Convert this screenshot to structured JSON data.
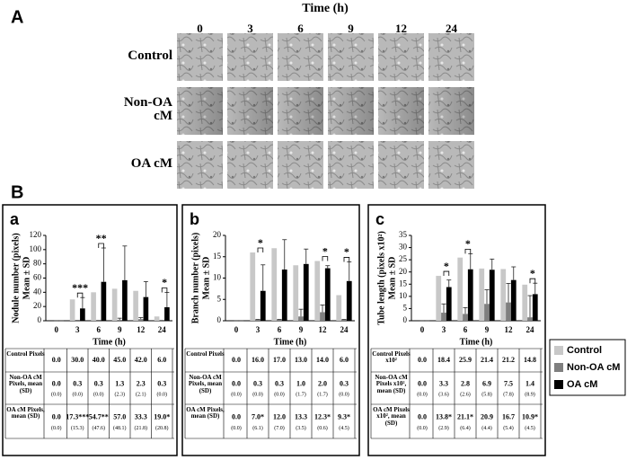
{
  "panel_a": {
    "label": "A",
    "title": "Time (h)",
    "columns": [
      "0",
      "3",
      "6",
      "9",
      "12",
      "24"
    ],
    "rows": [
      "Control",
      "Non-OA cM",
      "OA cM"
    ]
  },
  "panel_b_label": "B",
  "chart_data": [
    {
      "type": "bar",
      "panel": "a",
      "ylabel": "Nodule number (pixels)",
      "ylabel2": "Mean ± SD",
      "xlabel": "Time (h)",
      "categories": [
        "0",
        "3",
        "6",
        "9",
        "12",
        "24"
      ],
      "ylim": [
        0,
        120
      ],
      "yticks": [
        0,
        20,
        40,
        60,
        80,
        100,
        120
      ],
      "series": [
        {
          "name": "Control",
          "color": "#c8c8c8",
          "table_label": "Control Pixels",
          "values": [
            0,
            30,
            40,
            45,
            42,
            6
          ],
          "value_labels": [
            "0.0",
            "30.0",
            "40.0",
            "45.0",
            "42.0",
            "6.0"
          ]
        },
        {
          "name": "Non-OA cM",
          "color": "#7f7f7f",
          "table_label": "Non-OA cM Pixels, mean (SD)",
          "values": [
            0,
            0.3,
            0.3,
            1.3,
            2.3,
            0.3
          ],
          "value_labels": [
            "0.0",
            "0.3",
            "0.3",
            "1.3",
            "2.3",
            "0.3"
          ],
          "errors": [
            0,
            0,
            0,
            2.3,
            2.1,
            0
          ],
          "error_labels": [
            "(0.0)",
            "(0.0)",
            "(0.0)",
            "(2.3)",
            "(2.1)",
            "(0.0)"
          ]
        },
        {
          "name": "OA cM",
          "color": "#000000",
          "table_label": "OA cM Pixels, mean (SD)",
          "values": [
            0,
            17.3,
            54.7,
            57.0,
            33.3,
            19.0
          ],
          "value_labels": [
            "0.0",
            "17.3***",
            "54.7**",
            "57.0",
            "33.3",
            "19.0*"
          ],
          "errors": [
            0,
            15.3,
            47.6,
            48.1,
            21.8,
            20.8
          ],
          "error_labels": [
            "(0.0)",
            "(15.3)",
            "(47.6)",
            "(48.1)",
            "(21.8)",
            "(20.8)"
          ]
        }
      ],
      "annotations": [
        {
          "at": "3",
          "text": "***"
        },
        {
          "at": "6",
          "text": "**"
        },
        {
          "at": "24",
          "text": "*"
        }
      ]
    },
    {
      "type": "bar",
      "panel": "b",
      "ylabel": "Branch number (pixels)",
      "ylabel2": "Mean ± SD",
      "xlabel": "Time (h)",
      "categories": [
        "0",
        "3",
        "6",
        "9",
        "12",
        "24"
      ],
      "ylim": [
        0,
        20
      ],
      "yticks": [
        0,
        5,
        10,
        15,
        20
      ],
      "series": [
        {
          "name": "Control",
          "color": "#c8c8c8",
          "table_label": "Control Pixels",
          "values": [
            0,
            16,
            17,
            13,
            14,
            6
          ],
          "value_labels": [
            "0.0",
            "16.0",
            "17.0",
            "13.0",
            "14.0",
            "6.0"
          ]
        },
        {
          "name": "Non-OA cM",
          "color": "#7f7f7f",
          "table_label": "Non-OA cM Pixels, mean (SD)",
          "values": [
            0,
            0.3,
            0.3,
            1.0,
            2.0,
            0.3
          ],
          "value_labels": [
            "0.0",
            "0.3",
            "0.3",
            "1.0",
            "2.0",
            "0.3"
          ],
          "errors": [
            0,
            0,
            0,
            1.7,
            1.7,
            0
          ],
          "error_labels": [
            "(0.0)",
            "(0.0)",
            "(0.0)",
            "(1.7)",
            "(1.7)",
            "(0.0)"
          ]
        },
        {
          "name": "OA cM",
          "color": "#000000",
          "table_label": "OA cM Pixels, mean (SD)",
          "values": [
            0,
            7.0,
            12.0,
            13.3,
            12.3,
            9.3
          ],
          "value_labels": [
            "0.0",
            "7.0*",
            "12.0",
            "13.3",
            "12.3*",
            "9.3*"
          ],
          "errors": [
            0,
            6.1,
            7.0,
            3.5,
            0.6,
            4.5
          ],
          "error_labels": [
            "(0.0)",
            "(6.1)",
            "(7.0)",
            "(3.5)",
            "(0.6)",
            "(4.5)"
          ]
        }
      ],
      "annotations": [
        {
          "at": "3",
          "text": "*"
        },
        {
          "at": "12",
          "text": "*"
        },
        {
          "at": "24",
          "text": "*"
        }
      ]
    },
    {
      "type": "bar",
      "panel": "c",
      "ylabel": "Tube length (pixels x10²)",
      "ylabel2": "Mean ± SD",
      "xlabel": "Time (h)",
      "categories": [
        "0",
        "3",
        "6",
        "9",
        "12",
        "24"
      ],
      "ylim": [
        0,
        35
      ],
      "yticks": [
        0,
        5,
        10,
        15,
        20,
        25,
        30,
        35
      ],
      "legend": "right",
      "series": [
        {
          "name": "Control",
          "color": "#c8c8c8",
          "table_label": "Control Pixels x10²",
          "values": [
            0,
            18.4,
            25.9,
            21.4,
            21.2,
            14.8
          ],
          "value_labels": [
            "0.0",
            "18.4",
            "25.9",
            "21.4",
            "21.2",
            "14.8"
          ]
        },
        {
          "name": "Non-OA cM",
          "color": "#7f7f7f",
          "table_label": "Non-OA cM Pixels x10², mean (SD)",
          "values": [
            0,
            3.3,
            2.8,
            6.9,
            7.5,
            1.4
          ],
          "value_labels": [
            "0.0",
            "3.3",
            "2.8",
            "6.9",
            "7.5",
            "1.4"
          ],
          "errors": [
            0,
            3.6,
            2.6,
            5.8,
            7.8,
            8.9
          ],
          "error_labels": [
            "(0.0)",
            "(3.6)",
            "(2.6)",
            "(5.8)",
            "(7.8)",
            "(8.9)"
          ]
        },
        {
          "name": "OA cM",
          "color": "#000000",
          "table_label": "OA cM Pixels x10², mean (SD)",
          "values": [
            0,
            13.8,
            21.1,
            20.9,
            16.7,
            10.9
          ],
          "value_labels": [
            "0.0",
            "13.8*",
            "21.1*",
            "20.9",
            "16.7",
            "10.9*"
          ],
          "errors": [
            0,
            2.9,
            6.4,
            4.4,
            5.4,
            4.5
          ],
          "error_labels": [
            "(0.0)",
            "(2.9)",
            "(6.4)",
            "(4.4)",
            "(5.4)",
            "(4.5)"
          ]
        }
      ],
      "annotations": [
        {
          "at": "3",
          "text": "*"
        },
        {
          "at": "6",
          "text": "*"
        },
        {
          "at": "24",
          "text": "*"
        }
      ]
    }
  ]
}
